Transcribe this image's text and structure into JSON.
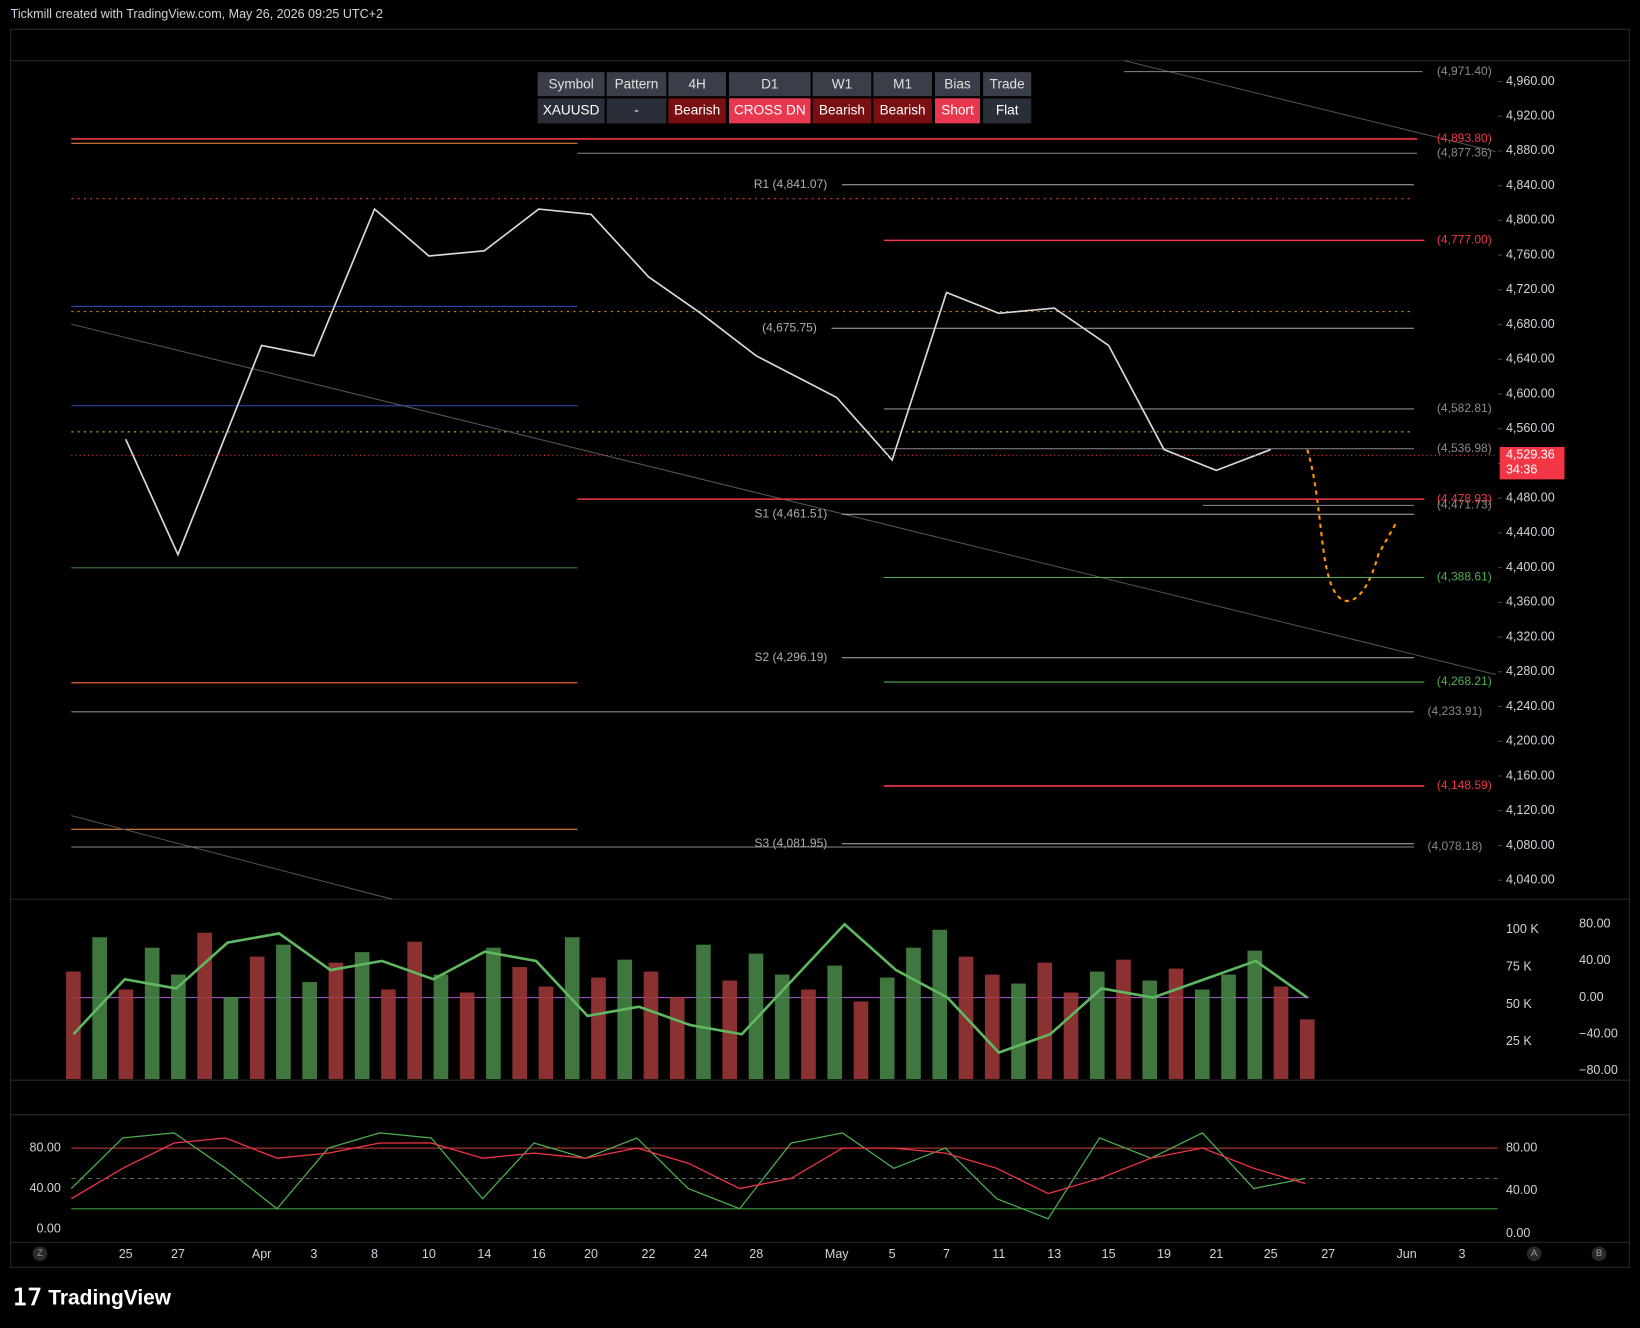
{
  "header": {
    "credit": "Tickmill created with TradingView.com, May 26, 2026 09:25 UTC+2"
  },
  "table": {
    "header": [
      "Symbol",
      "Pattern",
      "4H",
      "D1",
      "W1",
      "M1",
      "Bias",
      "Trade"
    ],
    "row": [
      "XAUUSD",
      "-",
      "Bearish",
      "CROSS DN",
      "Bearish",
      "Bearish",
      "Short",
      "Flat"
    ],
    "row_colors": [
      "#2a2e39",
      "#2a2e39",
      "#7a0f12",
      "#e8384f",
      "#7a0f12",
      "#7a0f12",
      "#e8384f",
      "#2a2e39"
    ]
  },
  "chart_data": [
    {
      "type": "line",
      "categories": [
        "25",
        "27",
        "Apr",
        "3",
        "8",
        "10",
        "14",
        "16",
        "20",
        "22",
        "24",
        "28",
        "May",
        "5",
        "7",
        "11",
        "13",
        "15",
        "19",
        "21",
        "25",
        "27",
        "Jun",
        "3"
      ],
      "series": [
        {
          "color": "#d9d9d9",
          "values": [
            4548,
            4415,
            4656,
            4644,
            4813,
            4759,
            4765,
            4813,
            4807,
            4735,
            4693,
            4644,
            4596,
            4524,
            4717,
            4693,
            4699,
            4656,
            4536,
            4512,
            4536,
            null,
            null,
            null
          ]
        }
      ],
      "ylim": [
        4018,
        4984
      ],
      "yticks": [
        {
          "value": 4960,
          "label": "4,960.00"
        },
        {
          "value": 4920,
          "label": "4,920.00"
        },
        {
          "value": 4880,
          "label": "4,880.00"
        },
        {
          "value": 4840,
          "label": "4,840.00"
        },
        {
          "value": 4800,
          "label": "4,800.00"
        },
        {
          "value": 4760,
          "label": "4,760.00"
        },
        {
          "value": 4720,
          "label": "4,720.00"
        },
        {
          "value": 4680,
          "label": "4,680.00"
        },
        {
          "value": 4640,
          "label": "4,640.00"
        },
        {
          "value": 4600,
          "label": "4,600.00"
        },
        {
          "value": 4560,
          "label": "4,560.00"
        },
        {
          "value": 4520,
          "label": "4,520.00"
        },
        {
          "value": 4480,
          "label": "4,480.00"
        },
        {
          "value": 4440,
          "label": "4,440.00"
        },
        {
          "value": 4400,
          "label": "4,400.00"
        },
        {
          "value": 4360,
          "label": "4,360.00"
        },
        {
          "value": 4320,
          "label": "4,320.00"
        },
        {
          "value": 4280,
          "label": "4,280.00"
        },
        {
          "value": 4240,
          "label": "4,240.00"
        },
        {
          "value": 4200,
          "label": "4,200.00"
        },
        {
          "value": 4160,
          "label": "4,160.00"
        },
        {
          "value": 4120,
          "label": "4,120.00"
        },
        {
          "value": 4080,
          "label": "4,080.00"
        },
        {
          "value": 4040,
          "label": "4,040.00"
        }
      ],
      "levels": [
        {
          "value": 4971.4,
          "label": "(4,971.40)",
          "color": "#8a8a8a"
        },
        {
          "value": 4893.8,
          "label": "(4,893.80)",
          "color": "#f23645"
        },
        {
          "value": 4877.36,
          "label": "(4,877.36)",
          "color": "#8a8a8a"
        },
        {
          "value": 4841.07,
          "label": "R1 (4,841.07)",
          "color": "#b0b0b0"
        },
        {
          "value": 4777.0,
          "label": "(4,777.00)",
          "color": "#f23645"
        },
        {
          "value": 4675.75,
          "label": "(4,675.75)",
          "color": "#b0b0b0"
        },
        {
          "value": 4582.81,
          "label": "(4,582.81)",
          "color": "#8a8a8a"
        },
        {
          "value": 4536.98,
          "label": "(4,536.98)",
          "color": "#8a8a8a"
        },
        {
          "value": 4478.93,
          "label": "(4,478.93)",
          "color": "#f23645"
        },
        {
          "value": 4471.73,
          "label": "(4,471.73)",
          "color": "#8a8a8a"
        },
        {
          "value": 4461.51,
          "label": "S1 (4,461.51)",
          "color": "#b0b0b0"
        },
        {
          "value": 4388.61,
          "label": "(4,388.61)",
          "color": "#4caf50"
        },
        {
          "value": 4296.19,
          "label": "S2 (4,296.19)",
          "color": "#b0b0b0"
        },
        {
          "value": 4268.21,
          "label": "(4,268.21)",
          "color": "#4caf50"
        },
        {
          "value": 4233.91,
          "label": "(4,233.91)",
          "color": "#8a8a8a"
        },
        {
          "value": 4148.59,
          "label": "(4,148.59)",
          "color": "#f23645"
        },
        {
          "value": 4081.95,
          "label": "S3 (4,081.95)",
          "color": "#b0b0b0"
        },
        {
          "value": 4078.18,
          "label": "(4,078.18)",
          "color": "#8a8a8a"
        }
      ],
      "last_price": {
        "value": 4529.36,
        "label": "4,529.36"
      },
      "countdown": "34:36"
    },
    {
      "type": "bar",
      "values": [
        72000,
        95000,
        60000,
        88000,
        70000,
        98000,
        55000,
        82000,
        90000,
        65000,
        78000,
        85000,
        60000,
        92000,
        70000,
        58000,
        88000,
        75000,
        62000,
        95000,
        68000,
        80000,
        72000,
        55000,
        90000,
        66000,
        84000,
        70000,
        60000,
        76000,
        52000,
        68000,
        88000,
        100000,
        82000,
        70000,
        64000,
        78000,
        58000,
        72000,
        80000,
        66000,
        74000,
        60000,
        70000,
        86000,
        62000,
        40000
      ],
      "colors": [
        "#a33a3a",
        "#4a8c4a",
        "#a33a3a",
        "#4a8c4a",
        "#4a8c4a",
        "#a33a3a",
        "#4a8c4a",
        "#a33a3a",
        "#4a8c4a",
        "#4a8c4a",
        "#a33a3a",
        "#4a8c4a",
        "#a33a3a",
        "#a33a3a",
        "#4a8c4a",
        "#a33a3a",
        "#4a8c4a",
        "#a33a3a",
        "#a33a3a",
        "#4a8c4a",
        "#a33a3a",
        "#4a8c4a",
        "#a33a3a",
        "#a33a3a",
        "#4a8c4a",
        "#a33a3a",
        "#4a8c4a",
        "#4a8c4a",
        "#a33a3a",
        "#4a8c4a",
        "#a33a3a",
        "#4a8c4a",
        "#4a8c4a",
        "#4a8c4a",
        "#a33a3a",
        "#a33a3a",
        "#4a8c4a",
        "#a33a3a",
        "#a33a3a",
        "#4a8c4a",
        "#a33a3a",
        "#4a8c4a",
        "#a33a3a",
        "#4a8c4a",
        "#4a8c4a",
        "#4a8c4a",
        "#a33a3a",
        "#a33a3a"
      ],
      "ylim": [
        0,
        119000
      ],
      "yticks": [
        {
          "value": 100000,
          "label": "100 K"
        },
        {
          "value": 75000,
          "label": "75 K"
        },
        {
          "value": 50000,
          "label": "50 K"
        },
        {
          "value": 25000,
          "label": "25 K"
        }
      ],
      "series": [
        {
          "color": "#5fb85f",
          "axis": "y2",
          "values": [
            -40,
            20,
            10,
            60,
            70,
            30,
            40,
            20,
            50,
            40,
            -20,
            -10,
            -30,
            -40,
            20,
            80,
            30,
            0,
            -60,
            -40,
            10,
            0,
            20,
            40,
            0
          ]
        }
      ],
      "y2lim": [
        -89,
        105
      ],
      "y2ticks": [
        {
          "value": 80,
          "label": "80.00"
        },
        {
          "value": 40,
          "label": "40.00"
        },
        {
          "value": 0,
          "label": "0.00"
        },
        {
          "value": -40,
          "label": "−40.00"
        },
        {
          "value": -80,
          "label": "−80.00"
        }
      ]
    },
    {
      "type": "line",
      "series": [
        {
          "color": "#4caf50",
          "values": [
            40,
            90,
            95,
            60,
            20,
            80,
            95,
            90,
            30,
            85,
            70,
            90,
            40,
            20,
            85,
            95,
            60,
            80,
            30,
            10,
            90,
            70,
            95,
            40,
            50
          ]
        },
        {
          "color": "#f23645",
          "values": [
            30,
            60,
            85,
            90,
            70,
            75,
            85,
            85,
            70,
            75,
            70,
            80,
            65,
            40,
            50,
            80,
            80,
            75,
            60,
            35,
            50,
            70,
            80,
            60,
            45
          ]
        }
      ],
      "ylim": [
        -10,
        113
      ],
      "yticks": [
        {
          "value": 80,
          "label": "80.00"
        },
        {
          "value": 40,
          "label": "40.00"
        },
        {
          "value": 0,
          "label": "0.00"
        }
      ],
      "y2lim": [
        -5,
        111
      ],
      "y2ticks": [
        {
          "value": 80,
          "label": "80.00"
        },
        {
          "value": 40,
          "label": "40.00"
        },
        {
          "value": 0,
          "label": "0.00"
        }
      ]
    }
  ],
  "axis_buttons": [
    "Z",
    "A",
    "B"
  ],
  "footer": {
    "brand": "TradingView"
  }
}
